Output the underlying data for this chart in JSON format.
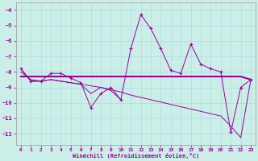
{
  "xlabel": "Windchill (Refroidissement éolien,°C)",
  "background_color": "#cceee8",
  "grid_color": "#aadddd",
  "line_color": "#990099",
  "xlim": [
    -0.5,
    23.5
  ],
  "ylim": [
    -12.7,
    -3.5
  ],
  "yticks": [
    -12,
    -11,
    -10,
    -9,
    -8,
    -7,
    -6,
    -5,
    -4
  ],
  "xticks": [
    0,
    1,
    2,
    3,
    4,
    5,
    6,
    7,
    8,
    9,
    10,
    11,
    12,
    13,
    14,
    15,
    16,
    17,
    18,
    19,
    20,
    21,
    22,
    23
  ],
  "hours": [
    0,
    1,
    2,
    3,
    4,
    5,
    6,
    7,
    8,
    9,
    10,
    11,
    12,
    13,
    14,
    15,
    16,
    17,
    18,
    19,
    20,
    21,
    22,
    23
  ],
  "line_spiky": [
    -7.8,
    -8.6,
    -8.6,
    -8.1,
    -8.1,
    -8.4,
    -8.7,
    -10.3,
    -9.4,
    -9.0,
    -9.8,
    -6.5,
    -4.3,
    -5.2,
    -6.5,
    -7.9,
    -8.1,
    -6.2,
    -7.5,
    -7.8,
    -8.0,
    -11.9,
    -9.0,
    -8.5
  ],
  "line_flat": [
    -8.3,
    -8.3,
    -8.3,
    -8.3,
    -8.3,
    -8.3,
    -8.3,
    -8.3,
    -8.3,
    -8.3,
    -8.3,
    -8.3,
    -8.3,
    -8.3,
    -8.3,
    -8.3,
    -8.3,
    -8.3,
    -8.3,
    -8.3,
    -8.3,
    -8.3,
    -8.3,
    -8.5
  ],
  "line_trend": [
    -8.0,
    -8.5,
    -8.6,
    -8.5,
    -8.6,
    -8.7,
    -8.8,
    -8.9,
    -9.0,
    -9.15,
    -9.3,
    -9.5,
    -9.65,
    -9.8,
    -9.95,
    -10.1,
    -10.25,
    -10.4,
    -10.55,
    -10.7,
    -10.85,
    -11.5,
    -12.25,
    -8.5
  ],
  "line_short": [
    -7.8,
    -8.6,
    -8.6,
    -8.5,
    -8.6,
    -8.7,
    -8.8,
    -9.4,
    -9.0,
    -9.2,
    -9.8,
    null,
    null,
    null,
    null,
    null,
    null,
    null,
    null,
    null,
    null,
    null,
    null,
    null
  ]
}
